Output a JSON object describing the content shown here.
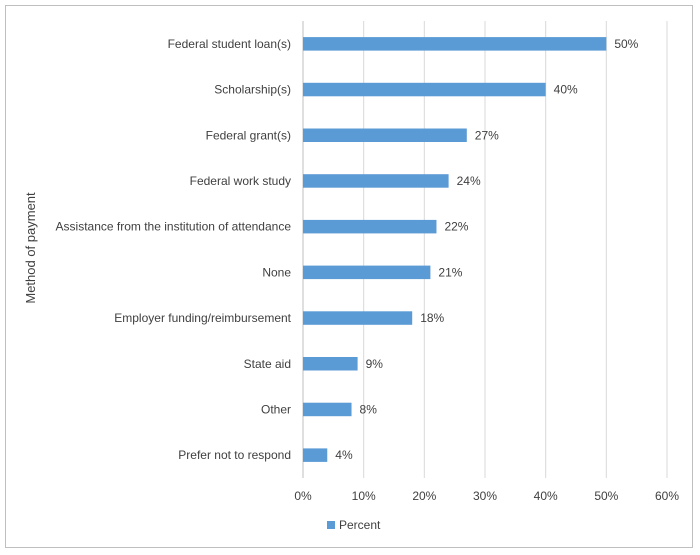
{
  "chart_data": {
    "type": "bar",
    "orientation": "horizontal",
    "categories": [
      "Federal student loan(s)",
      "Scholarship(s)",
      "Federal grant(s)",
      "Federal work study",
      "Assistance from the institution of attendance",
      "None",
      "Employer funding/reimbursement",
      "State aid",
      "Other",
      "Prefer not to respond"
    ],
    "series": [
      {
        "name": "Percent",
        "values": [
          50,
          40,
          27,
          24,
          22,
          21,
          18,
          9,
          8,
          4
        ],
        "data_labels": [
          "50%",
          "40%",
          "27%",
          "24%",
          "22%",
          "21%",
          "18%",
          "9%",
          "8%",
          "4%"
        ],
        "color": "#5b9bd5"
      }
    ],
    "xlim": [
      0,
      60
    ],
    "xticks": [
      "0%",
      "10%",
      "20%",
      "30%",
      "40%",
      "50%",
      "60%"
    ],
    "xlabel": "",
    "ylabel": "Method of payment",
    "grid": "vertical",
    "legend": "bottom-center",
    "gridline_color": "#d9d9d9"
  }
}
